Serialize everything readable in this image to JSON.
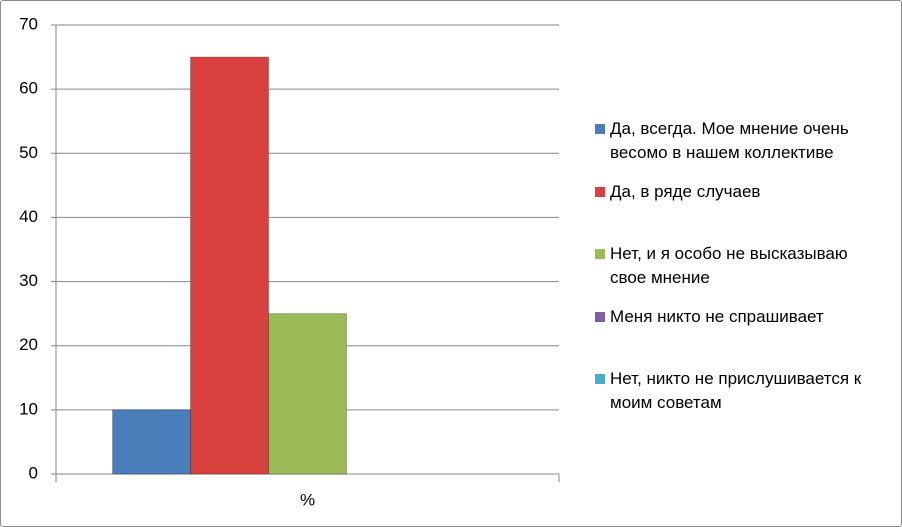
{
  "chart_data": {
    "type": "bar",
    "categories": [
      "%"
    ],
    "series": [
      {
        "name": "Да, всегда. Мое мнение очень весомо в нашем коллективе",
        "color": "#4a7ebb",
        "values": [
          10
        ]
      },
      {
        "name": "Да, в ряде случаев",
        "color": "#d9413e",
        "values": [
          65
        ]
      },
      {
        "name": "Нет, и я особо не высказываю свое мнение",
        "color": "#9bbb59",
        "values": [
          25
        ]
      },
      {
        "name": "Меня никто не спрашивает",
        "color": "#7f5fa5",
        "values": [
          0
        ]
      },
      {
        "name": "Нет, никто не прислушивается к моим советам",
        "color": "#4bacc6",
        "values": [
          0
        ]
      }
    ],
    "ylim": [
      0,
      70
    ],
    "yticks": [
      0,
      10,
      20,
      30,
      40,
      50,
      60,
      70
    ],
    "grid": true,
    "legend": "right"
  }
}
